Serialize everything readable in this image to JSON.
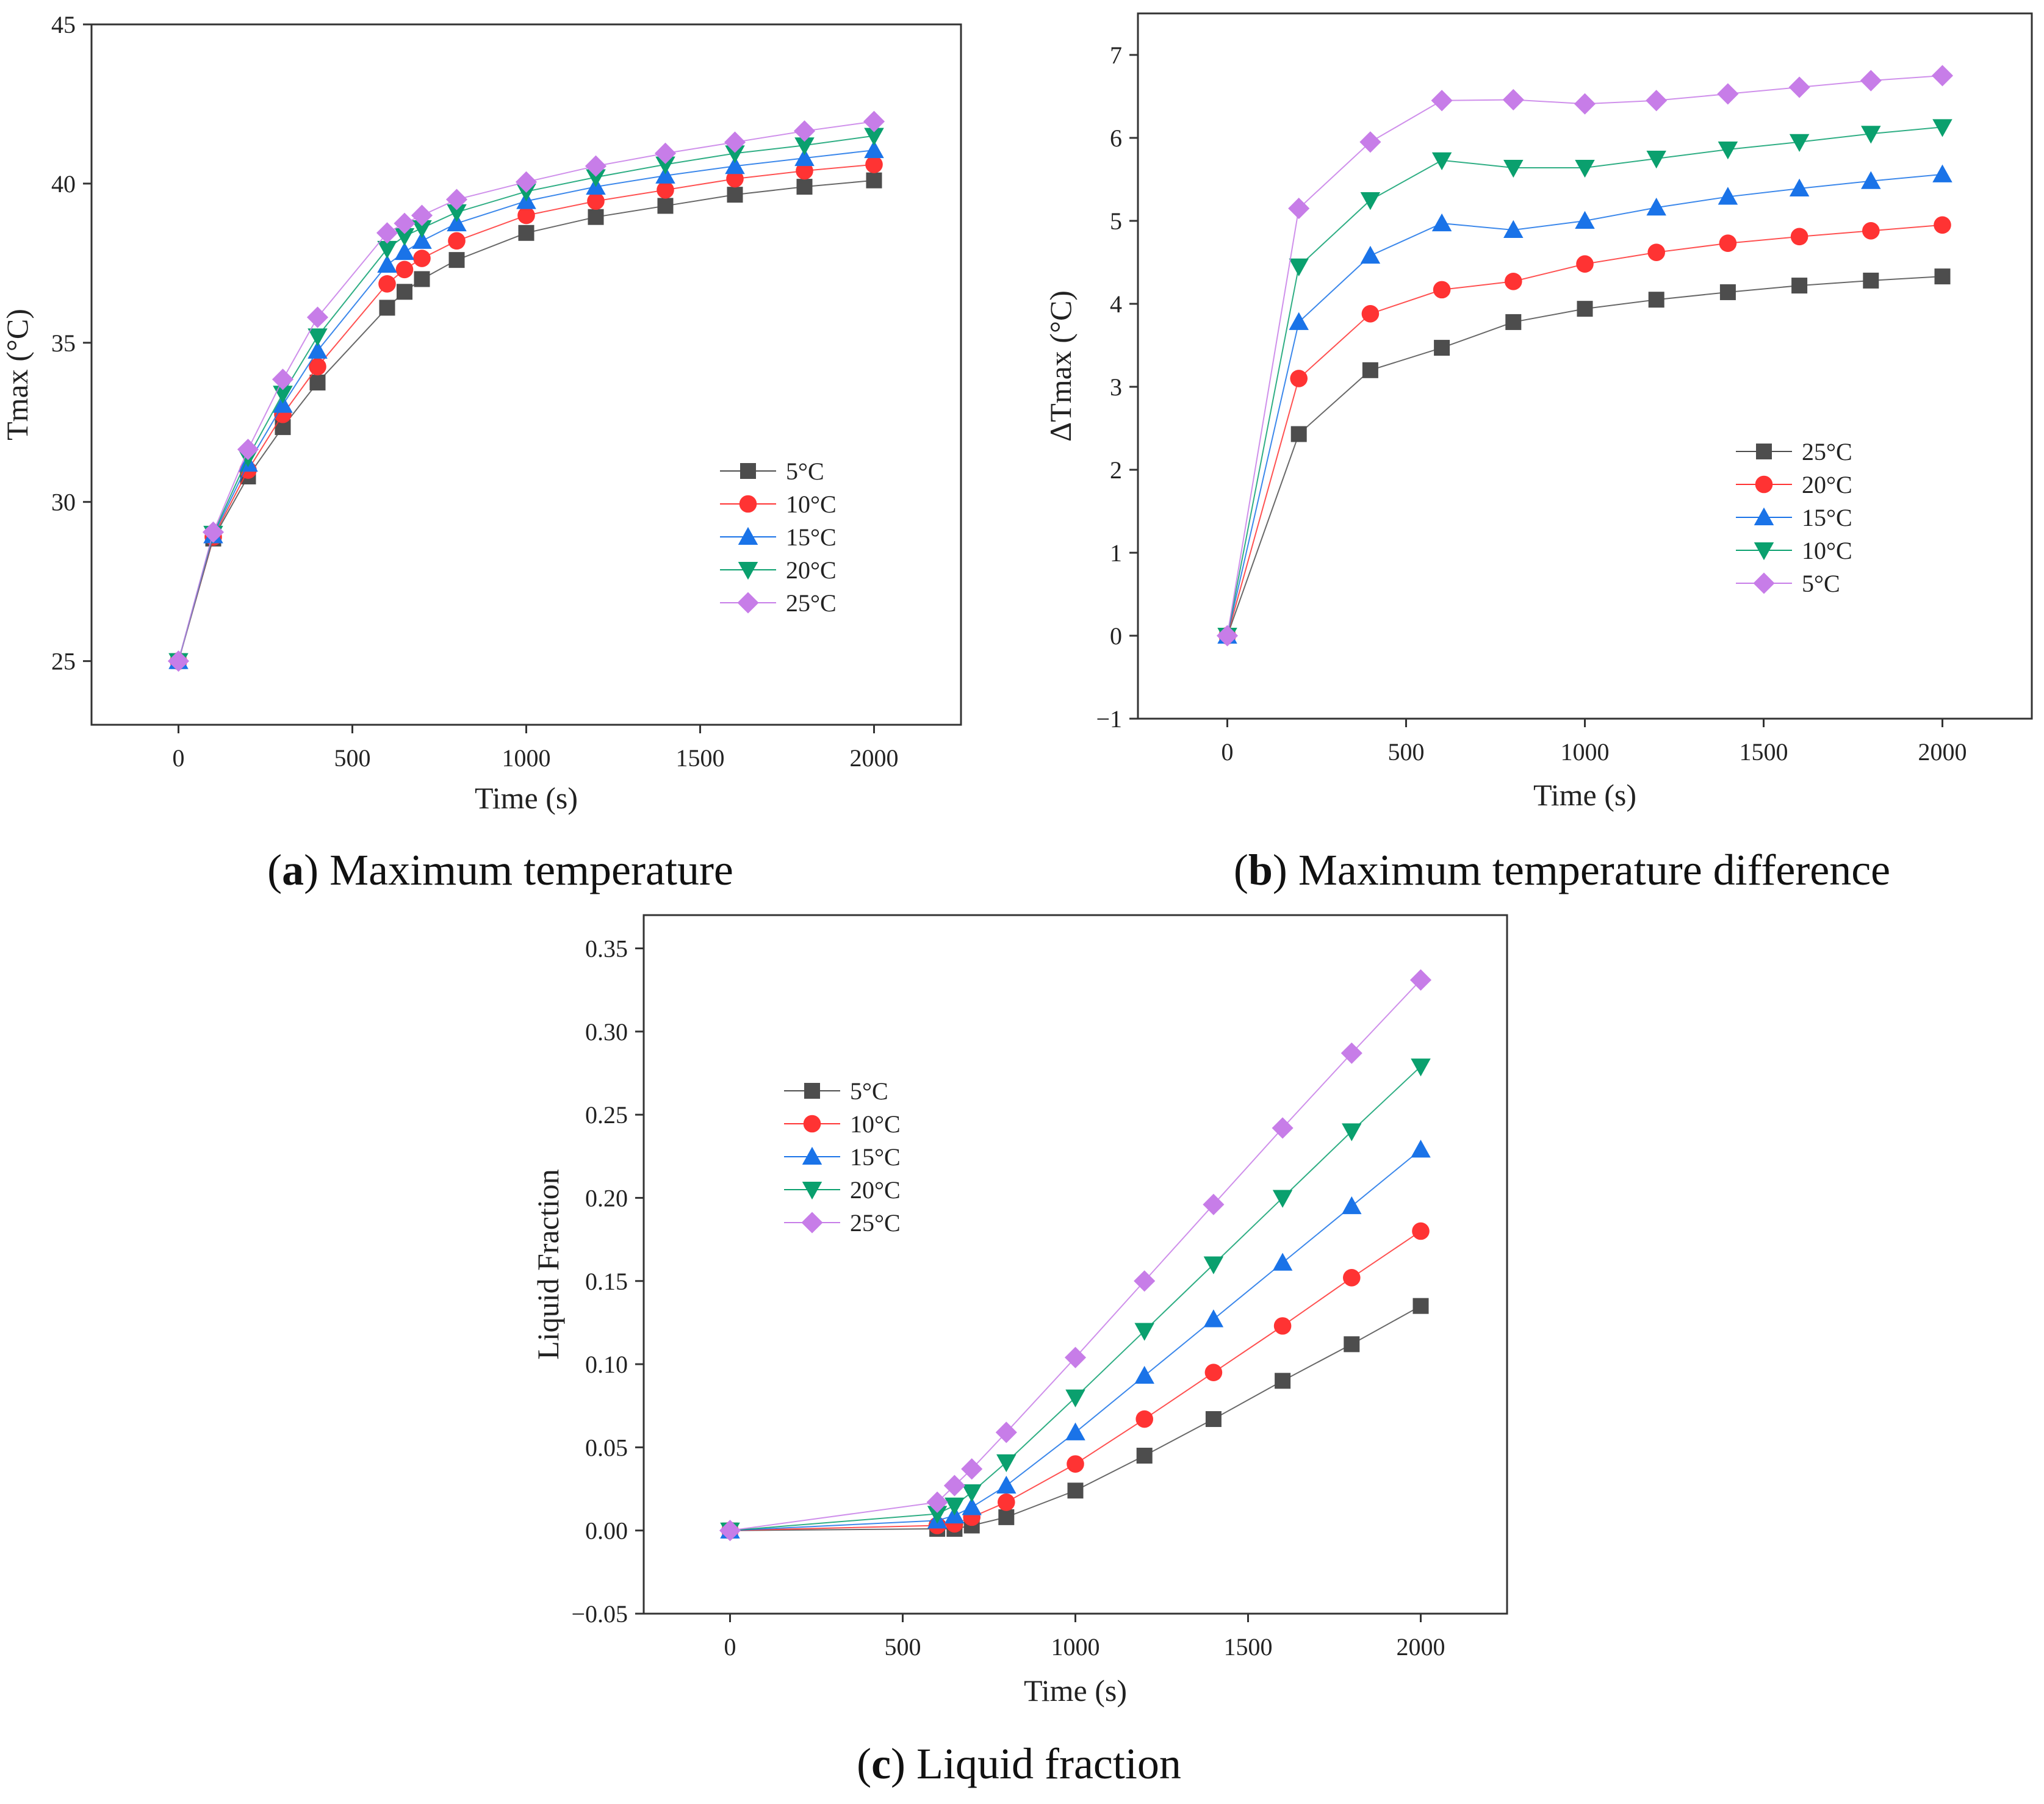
{
  "colors": {
    "axis": "#333333",
    "series": [
      "#4d4d4d",
      "#ff3333",
      "#1a73e8",
      "#0aa06e",
      "#c77de8"
    ]
  },
  "captions": [
    {
      "letter": "a",
      "text": " Maximum temperature"
    },
    {
      "letter": "b",
      "text": " Maximum temperature difference"
    },
    {
      "letter": "c",
      "text": " Liquid fraction"
    }
  ],
  "chart_data": [
    {
      "type": "line",
      "title": "",
      "xlabel": "Time (s)",
      "ylabel": "Tmax (°C)",
      "xlim": [
        -250,
        2250
      ],
      "ylim": [
        23,
        45
      ],
      "xticks": [
        0,
        500,
        1000,
        1500,
        2000
      ],
      "yticks": [
        25,
        30,
        35,
        40,
        45
      ],
      "xtick_labels": [
        "0",
        "500",
        "1000",
        "1500",
        "2000"
      ],
      "ytick_labels": [
        "25",
        "30",
        "35",
        "40",
        "45"
      ],
      "legend_position": "right",
      "grid": false,
      "x": [
        0,
        100,
        200,
        300,
        400,
        600,
        650,
        700,
        800,
        1000,
        1200,
        1400,
        1600,
        1800,
        2000
      ],
      "series": [
        {
          "name": "5°C",
          "marker": "square",
          "values": [
            25,
            28.85,
            30.8,
            32.35,
            33.75,
            36.1,
            36.6,
            37.0,
            37.6,
            38.45,
            38.95,
            39.3,
            39.65,
            39.9,
            40.1
          ]
        },
        {
          "name": "10°C",
          "marker": "circle",
          "values": [
            25,
            28.9,
            31.0,
            32.75,
            34.25,
            36.85,
            37.3,
            37.65,
            38.2,
            39.0,
            39.45,
            39.8,
            40.15,
            40.4,
            40.6
          ]
        },
        {
          "name": "15°C",
          "marker": "triangle-up",
          "values": [
            25,
            28.95,
            31.2,
            33.05,
            34.75,
            37.45,
            37.85,
            38.2,
            38.75,
            39.45,
            39.9,
            40.25,
            40.55,
            40.8,
            41.05
          ]
        },
        {
          "name": "20°C",
          "marker": "triangle-down",
          "values": [
            25,
            29.0,
            31.4,
            33.4,
            35.2,
            37.95,
            38.35,
            38.6,
            39.1,
            39.75,
            40.2,
            40.6,
            40.95,
            41.2,
            41.5
          ]
        },
        {
          "name": "25°C",
          "marker": "diamond",
          "values": [
            25,
            29.05,
            31.65,
            33.85,
            35.8,
            38.45,
            38.75,
            39.0,
            39.5,
            40.05,
            40.55,
            40.95,
            41.3,
            41.65,
            41.95
          ]
        }
      ]
    },
    {
      "type": "line",
      "title": "",
      "xlabel": "Time (s)",
      "ylabel": "ΔTmax (°C)",
      "xlim": [
        -250,
        2250
      ],
      "ylim": [
        -1,
        7.5
      ],
      "xticks": [
        0,
        500,
        1000,
        1500,
        2000
      ],
      "yticks": [
        -1,
        0,
        1,
        2,
        3,
        4,
        5,
        6,
        7
      ],
      "xtick_labels": [
        "0",
        "500",
        "1000",
        "1500",
        "2000"
      ],
      "ytick_labels": [
        "−1",
        "0",
        "1",
        "2",
        "3",
        "4",
        "5",
        "6",
        "7"
      ],
      "legend_position": "right",
      "grid": false,
      "x": [
        0,
        200,
        400,
        600,
        800,
        1000,
        1200,
        1400,
        1600,
        1800,
        2000
      ],
      "series": [
        {
          "name": "25°C",
          "marker": "square",
          "values": [
            0,
            2.43,
            3.2,
            3.47,
            3.78,
            3.94,
            4.05,
            4.14,
            4.22,
            4.28,
            4.33
          ]
        },
        {
          "name": "20°C",
          "marker": "circle",
          "values": [
            0,
            3.1,
            3.88,
            4.17,
            4.27,
            4.48,
            4.62,
            4.73,
            4.81,
            4.88,
            4.95
          ]
        },
        {
          "name": "15°C",
          "marker": "triangle-up",
          "values": [
            0,
            3.78,
            4.58,
            4.97,
            4.89,
            5.0,
            5.16,
            5.29,
            5.39,
            5.48,
            5.56
          ]
        },
        {
          "name": "10°C",
          "marker": "triangle-down",
          "values": [
            0,
            4.45,
            5.25,
            5.73,
            5.64,
            5.64,
            5.75,
            5.86,
            5.95,
            6.05,
            6.13
          ]
        },
        {
          "name": "5°C",
          "marker": "diamond",
          "values": [
            0,
            5.15,
            5.95,
            6.45,
            6.46,
            6.41,
            6.45,
            6.53,
            6.61,
            6.69,
            6.75
          ]
        }
      ]
    },
    {
      "type": "line",
      "title": "",
      "xlabel": "Time (s)",
      "ylabel": "Liquid Fraction",
      "xlim": [
        -250,
        2250
      ],
      "ylim": [
        -0.05,
        0.37
      ],
      "xticks": [
        0,
        500,
        1000,
        1500,
        2000
      ],
      "yticks": [
        -0.05,
        0,
        0.05,
        0.1,
        0.15,
        0.2,
        0.25,
        0.3,
        0.35
      ],
      "xtick_labels": [
        "0",
        "500",
        "1000",
        "1500",
        "2000"
      ],
      "ytick_labels": [
        "−0.05",
        "0.00",
        "0.05",
        "0.10",
        "0.15",
        "0.20",
        "0.25",
        "0.30",
        "0.35"
      ],
      "legend_position": "upper-left",
      "grid": false,
      "x": [
        0,
        600,
        650,
        700,
        800,
        1000,
        1200,
        1400,
        1600,
        1800,
        2000
      ],
      "series": [
        {
          "name": "5°C",
          "marker": "square",
          "values": [
            0,
            0.001,
            0.001,
            0.003,
            0.008,
            0.024,
            0.045,
            0.067,
            0.09,
            0.112,
            0.135
          ]
        },
        {
          "name": "10°C",
          "marker": "circle",
          "values": [
            0,
            0.003,
            0.004,
            0.008,
            0.017,
            0.04,
            0.067,
            0.095,
            0.123,
            0.152,
            0.18
          ]
        },
        {
          "name": "15°C",
          "marker": "triangle-up",
          "values": [
            0,
            0.006,
            0.009,
            0.014,
            0.027,
            0.059,
            0.093,
            0.127,
            0.161,
            0.195,
            0.229
          ]
        },
        {
          "name": "20°C",
          "marker": "triangle-down",
          "values": [
            0,
            0.01,
            0.015,
            0.023,
            0.041,
            0.08,
            0.12,
            0.16,
            0.2,
            0.24,
            0.279
          ]
        },
        {
          "name": "25°C",
          "marker": "diamond",
          "values": [
            0,
            0.017,
            0.027,
            0.037,
            0.059,
            0.104,
            0.15,
            0.196,
            0.242,
            0.287,
            0.331
          ]
        }
      ]
    }
  ]
}
